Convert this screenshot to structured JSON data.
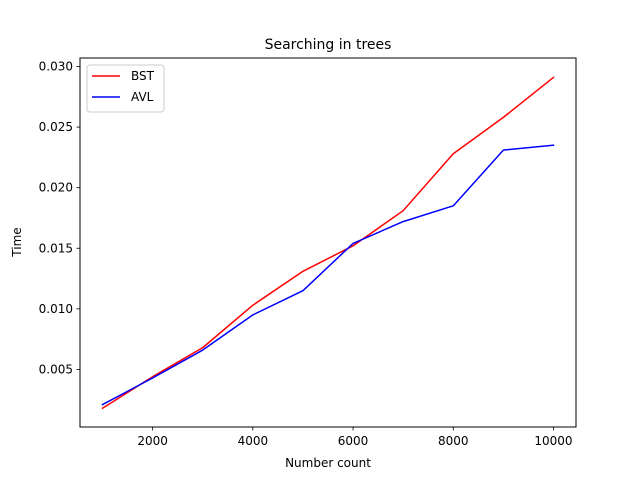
{
  "chart_data": {
    "type": "line",
    "title": "Searching in trees",
    "xlabel": "Number count",
    "ylabel": "Time",
    "xlim": [
      550,
      10450
    ],
    "ylim": [
      0.00025,
      0.0307
    ],
    "xticks": [
      2000,
      4000,
      6000,
      8000,
      10000
    ],
    "xtick_labels": [
      "2000",
      "4000",
      "6000",
      "8000",
      "10000"
    ],
    "yticks": [
      0.005,
      0.01,
      0.015,
      0.02,
      0.025,
      0.03
    ],
    "ytick_labels": [
      "0.005",
      "0.010",
      "0.015",
      "0.020",
      "0.025",
      "0.030"
    ],
    "grid": false,
    "legend_position": "top-left",
    "x": [
      1000,
      2000,
      3000,
      4000,
      5000,
      6000,
      7000,
      8000,
      9000,
      10000
    ],
    "series": [
      {
        "name": "BST",
        "color": "#ff0000",
        "values": [
          0.0018,
          0.0044,
          0.0068,
          0.0103,
          0.0131,
          0.0152,
          0.0181,
          0.0228,
          0.0258,
          0.0291
        ]
      },
      {
        "name": "AVL",
        "color": "#0000ff",
        "values": [
          0.0021,
          0.0043,
          0.0066,
          0.0095,
          0.0115,
          0.0154,
          0.0172,
          0.0185,
          0.0231,
          0.0235
        ]
      }
    ]
  }
}
